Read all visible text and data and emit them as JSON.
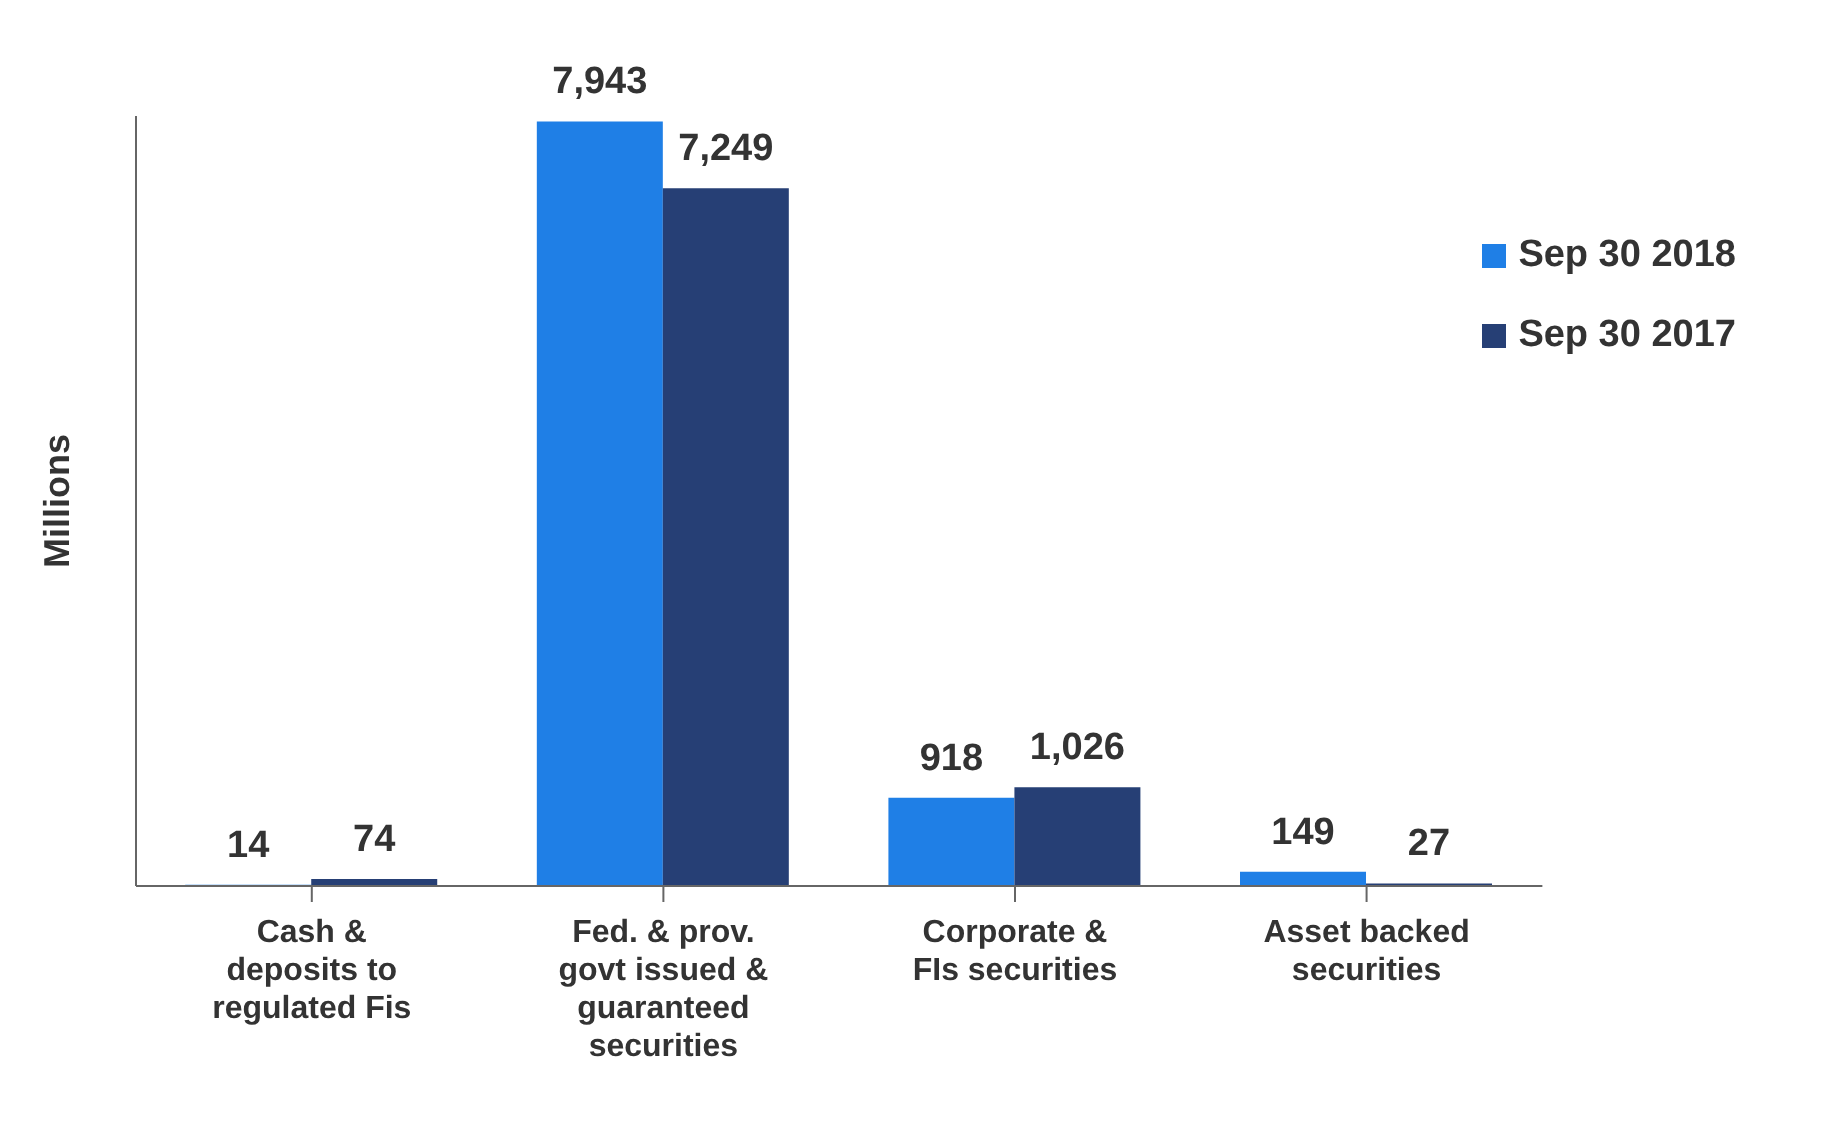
{
  "chart_data": {
    "type": "bar",
    "ylabel": "Millions",
    "categories": [
      "Cash & deposits to regulated Fis",
      "Fed. & prov. govt issued & guaranteed securities",
      "Corporate & FIs securities",
      "Asset backed securities"
    ],
    "series": [
      {
        "name": "Sep 30 2018",
        "color": "#1f7fe6",
        "values": [
          14,
          7943,
          918,
          149
        ],
        "value_labels": [
          "14",
          "7,943",
          "918",
          "149"
        ]
      },
      {
        "name": "Sep 30 2017",
        "color": "#263f75",
        "values": [
          74,
          7249,
          1026,
          27
        ],
        "value_labels": [
          "74",
          "7,249",
          "1,026",
          "27"
        ]
      }
    ],
    "ylim": [
      0,
      8000
    ],
    "tick_labels": "x",
    "grid": false,
    "legend": "top right"
  }
}
